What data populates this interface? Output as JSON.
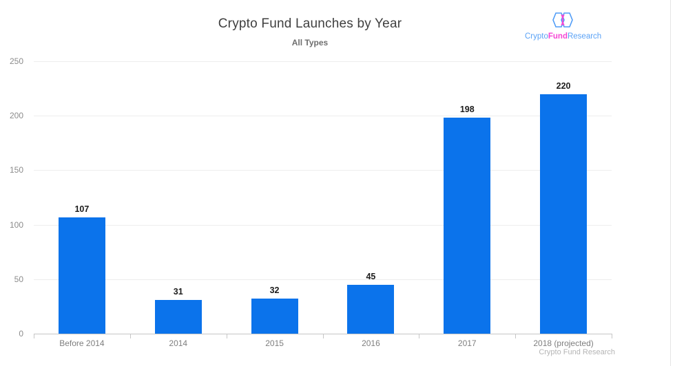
{
  "chart_data": {
    "type": "bar",
    "title": "Crypto Fund Launches by Year",
    "subtitle": "All Types",
    "categories": [
      "Before 2014",
      "2014",
      "2015",
      "2016",
      "2017",
      "2018 (projected)"
    ],
    "values": [
      107,
      31,
      32,
      45,
      198,
      220
    ],
    "ylim": [
      0,
      250
    ],
    "yticks": [
      0,
      50,
      100,
      150,
      200,
      250
    ],
    "grid": true,
    "legend": false,
    "value_labels": true
  },
  "colors": {
    "bar": "#0b73eb",
    "grid": "#ededed",
    "axis": "#c6c6c6",
    "title": "#3f3f3f",
    "subtitle": "#6e6e6e",
    "axis_label": "#8b8b8b",
    "value_label": "#1b1b1b",
    "attribution": "#b4b4b4",
    "logo_blue": "#5aa2f6",
    "logo_pink": "#f546d4"
  },
  "branding": {
    "logo_part_crypto": "Crypto",
    "logo_part_fund": "Fund",
    "logo_part_research": "Research",
    "attribution": "Crypto Fund Research"
  }
}
